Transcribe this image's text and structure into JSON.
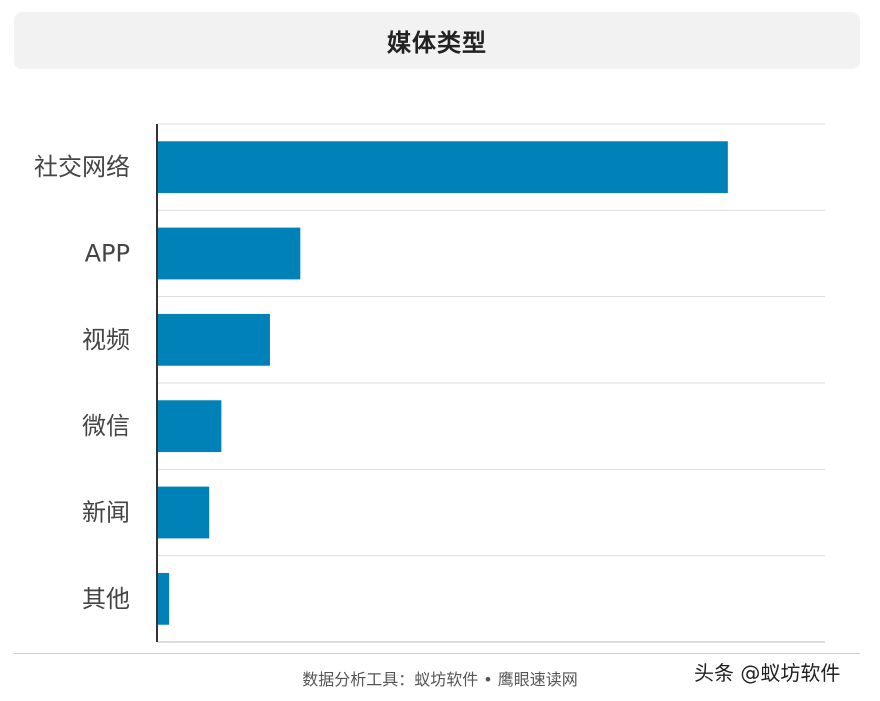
{
  "chart_data": {
    "type": "bar",
    "orientation": "horizontal",
    "title": "媒体类型",
    "categories": [
      "社交网络",
      "APP",
      "视频",
      "微信",
      "新闻",
      "其他"
    ],
    "values": [
      47,
      11.8,
      9.3,
      5.3,
      4.3,
      1.0
    ],
    "xlim": [
      0,
      55
    ],
    "grid": true,
    "bar_color": "#0082b8"
  },
  "footer": {
    "source": "数据分析工具：蚁坊软件 • 鹰眼速读网"
  },
  "watermark": "头条 @蚁坊软件"
}
